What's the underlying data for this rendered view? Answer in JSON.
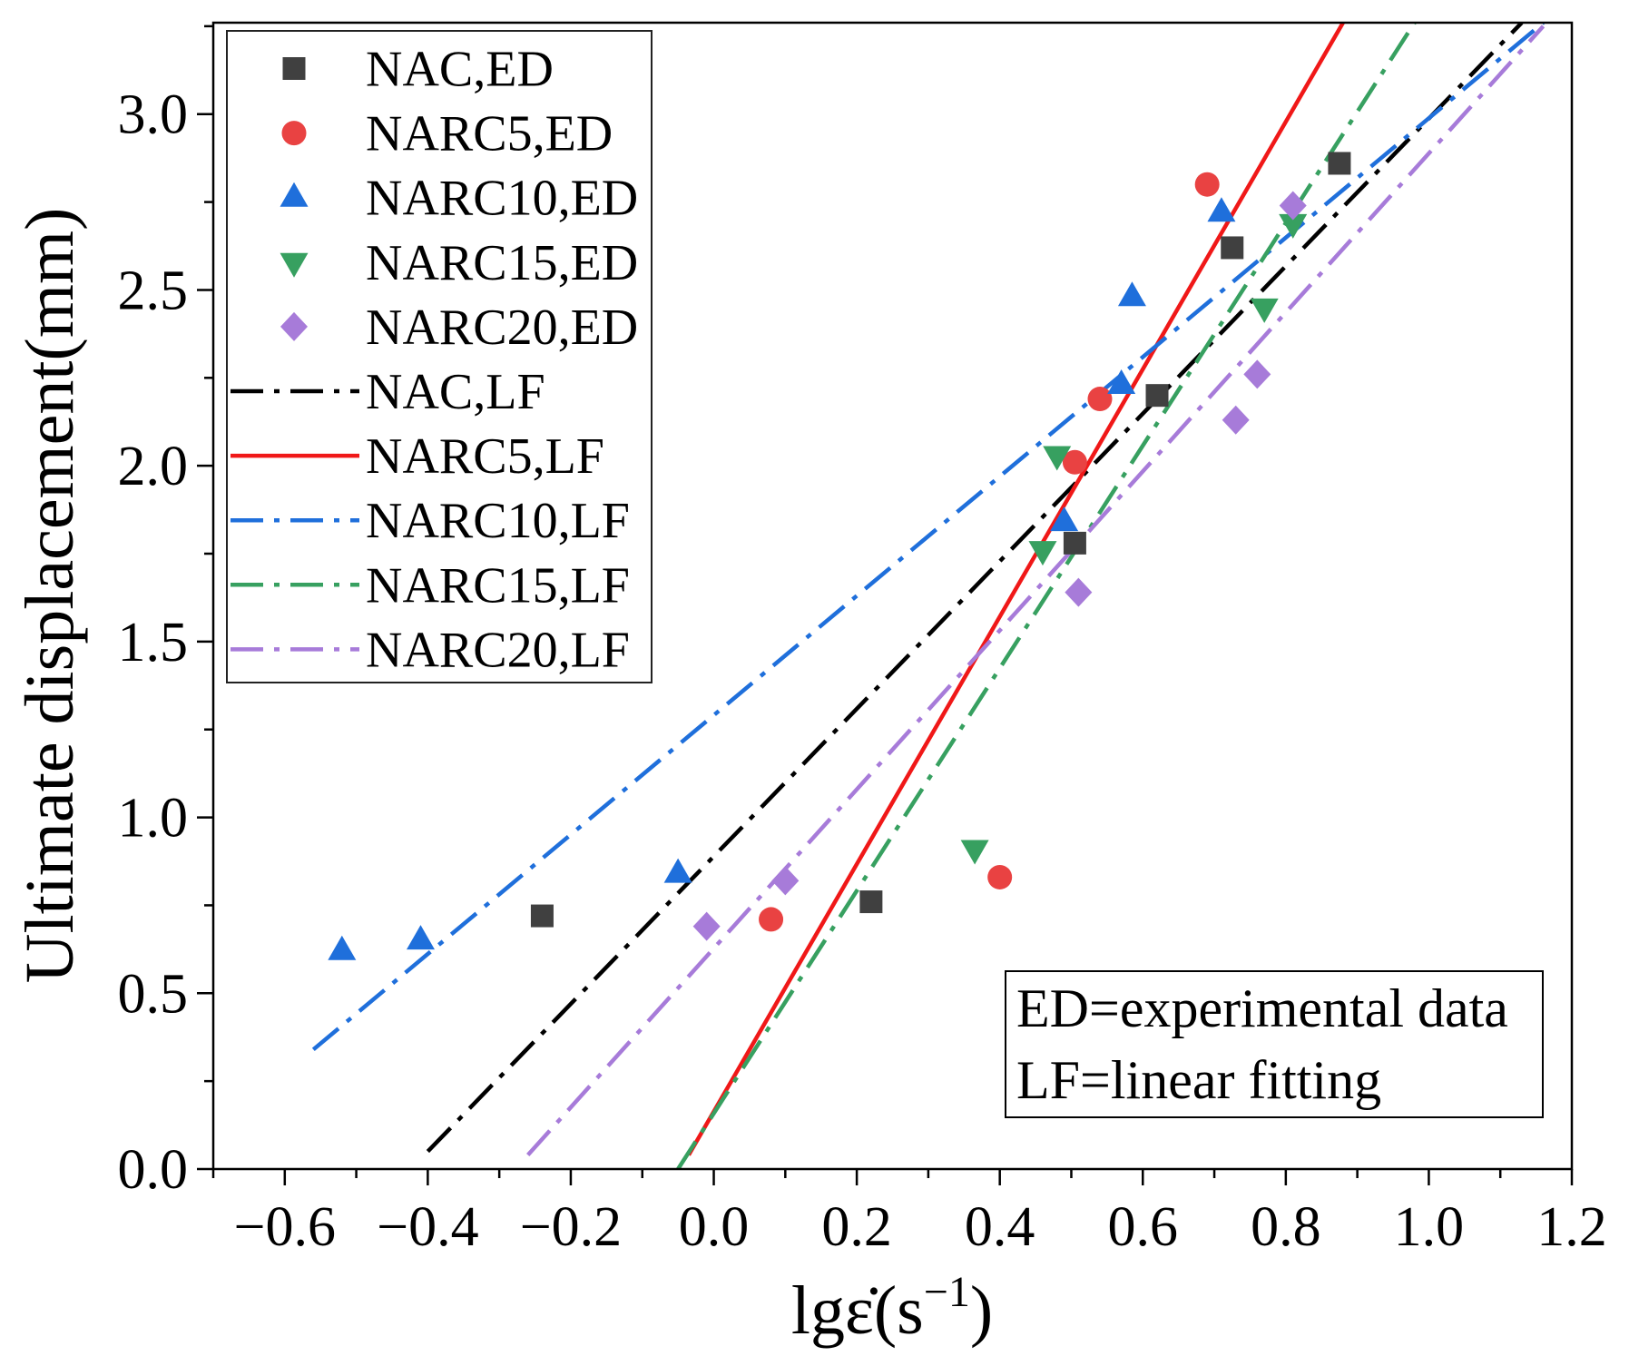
{
  "chart_data": {
    "type": "scatter",
    "xlabel": {
      "base": "lgε̇(s",
      "sup": "−1",
      "close": ")"
    },
    "ylabel": "Ultimate displacement(mm)",
    "x_axis": {
      "range": [
        -0.7,
        1.2
      ],
      "ticks": [
        -0.6,
        -0.4,
        -0.2,
        0.0,
        0.2,
        0.4,
        0.6,
        0.8,
        1.0,
        1.2
      ],
      "tick_labels": [
        "−0.6",
        "−0.4",
        "−0.2",
        "0.0",
        "0.2",
        "0.4",
        "0.6",
        "0.8",
        "1.0",
        "1.2"
      ],
      "minor_step": 0.1
    },
    "y_axis": {
      "range": [
        0,
        3.26
      ],
      "ticks": [
        0.0,
        0.5,
        1.0,
        1.5,
        2.0,
        2.5,
        3.0
      ],
      "tick_labels": [
        "0.0",
        "0.5",
        "1.0",
        "1.5",
        "2.0",
        "2.5",
        "3.0"
      ],
      "minor_step": 0.25
    },
    "grid": false,
    "legend": {
      "position": "top-left"
    },
    "series": [
      {
        "name": "NAC,ED",
        "kind": "scatter",
        "marker": "square",
        "color": "#404040",
        "x": [
          -0.24,
          0.22,
          0.505,
          0.62,
          0.725,
          0.875
        ],
        "y": [
          0.72,
          0.76,
          1.78,
          2.2,
          2.62,
          2.86
        ]
      },
      {
        "name": "NARC5,ED",
        "kind": "scatter",
        "marker": "circle",
        "color": "#e94242",
        "x": [
          0.08,
          0.4,
          0.505,
          0.54,
          0.69
        ],
        "y": [
          0.71,
          0.83,
          2.01,
          2.19,
          2.8
        ]
      },
      {
        "name": "NARC10,ED",
        "kind": "scatter",
        "marker": "triangle-up",
        "color": "#1f6fdb",
        "x": [
          -0.52,
          -0.41,
          -0.05,
          0.49,
          0.57,
          0.585,
          0.71
        ],
        "y": [
          0.62,
          0.65,
          0.84,
          1.84,
          2.23,
          2.48,
          2.72
        ]
      },
      {
        "name": "NARC15,ED",
        "kind": "scatter",
        "marker": "triangle-down",
        "color": "#37a060",
        "x": [
          0.365,
          0.46,
          0.48,
          0.77,
          0.81
        ],
        "y": [
          0.91,
          1.76,
          2.03,
          2.45,
          2.69
        ]
      },
      {
        "name": "NARC20,ED",
        "kind": "scatter",
        "marker": "diamond",
        "color": "#a77bd9",
        "x": [
          -0.01,
          0.1,
          0.51,
          0.73,
          0.76,
          0.81
        ],
        "y": [
          0.69,
          0.82,
          1.64,
          2.13,
          2.26,
          2.74
        ]
      },
      {
        "name": "NAC,LF",
        "kind": "line",
        "style": "dash-dot",
        "color": "#000000",
        "x": [
          -0.4,
          1.13
        ],
        "y": [
          0.05,
          3.26
        ]
      },
      {
        "name": "NARC5,LF",
        "kind": "line",
        "style": "solid",
        "color": "#f01818",
        "x": [
          -0.035,
          0.88
        ],
        "y": [
          0.04,
          3.26
        ]
      },
      {
        "name": "NARC10,LF",
        "kind": "line",
        "style": "dash-dot",
        "color": "#1f6fdb",
        "x": [
          -0.56,
          1.16
        ],
        "y": [
          0.34,
          3.26
        ]
      },
      {
        "name": "NARC15,LF",
        "kind": "line",
        "style": "dash-dot",
        "color": "#37a060",
        "x": [
          -0.05,
          0.98
        ],
        "y": [
          0.0,
          3.26
        ]
      },
      {
        "name": "NARC20,LF",
        "kind": "line",
        "style": "dash-dot",
        "color": "#a77bd9",
        "x": [
          -0.26,
          1.16
        ],
        "y": [
          0.04,
          3.25
        ]
      }
    ],
    "annotation": {
      "lines": [
        "ED=experimental data",
        "LF=linear fitting"
      ]
    }
  }
}
